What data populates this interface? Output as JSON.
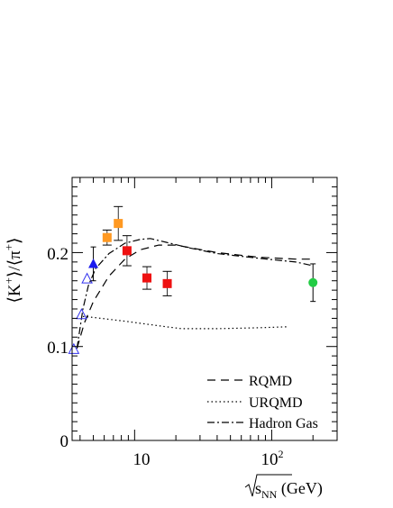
{
  "chart_data": {
    "type": "scatter",
    "title": "",
    "ylabel": "⟨K⁺⟩/⟨π⁺⟩",
    "xlabel": "√s_NN (GeV)",
    "x_scale": "log",
    "xlim": [
      3.5,
      300
    ],
    "ylim": [
      0,
      0.28
    ],
    "x_tick_labels": [
      "10",
      "10²"
    ],
    "y_tick_labels": [
      "0",
      "0.1",
      "0.2"
    ],
    "legend_position": "bottom-right",
    "legend": [
      {
        "label": "RQMD",
        "dash": "long-dash"
      },
      {
        "label": "URQMD",
        "dash": "dotted"
      },
      {
        "label": "Hadron Gas",
        "dash": "dash-dot"
      }
    ],
    "model_curves": [
      {
        "name": "RQMD",
        "style": "dashed",
        "points": [
          [
            3.8,
            0.098
          ],
          [
            4.3,
            0.125
          ],
          [
            5.0,
            0.148
          ],
          [
            6.5,
            0.175
          ],
          [
            8.5,
            0.193
          ],
          [
            11,
            0.203
          ],
          [
            15,
            0.208
          ],
          [
            20,
            0.208
          ],
          [
            40,
            0.2
          ],
          [
            80,
            0.195
          ],
          [
            150,
            0.193
          ],
          [
            200,
            0.193
          ]
        ]
      },
      {
        "name": "URQMD",
        "style": "dotted",
        "points": [
          [
            4.2,
            0.132
          ],
          [
            5.0,
            0.131
          ],
          [
            6.5,
            0.129
          ],
          [
            8.5,
            0.127
          ],
          [
            12,
            0.124
          ],
          [
            17,
            0.121
          ],
          [
            22,
            0.119
          ],
          [
            40,
            0.119
          ],
          [
            80,
            0.12
          ],
          [
            130,
            0.121
          ]
        ]
      },
      {
        "name": "Hadron Gas",
        "style": "dashdot",
        "points": [
          [
            3.8,
            0.098
          ],
          [
            4.2,
            0.14
          ],
          [
            4.6,
            0.165
          ],
          [
            5.2,
            0.183
          ],
          [
            6.5,
            0.199
          ],
          [
            8.5,
            0.21
          ],
          [
            11,
            0.214
          ],
          [
            13,
            0.215
          ],
          [
            17,
            0.211
          ],
          [
            25,
            0.205
          ],
          [
            40,
            0.199
          ],
          [
            80,
            0.194
          ],
          [
            150,
            0.19
          ],
          [
            200,
            0.186
          ]
        ]
      }
    ],
    "series": [
      {
        "marker": "triangle-open",
        "color": "#3333ee",
        "points": [
          {
            "x": 3.6,
            "y": 0.097
          },
          {
            "x": 4.1,
            "y": 0.134
          },
          {
            "x": 4.5,
            "y": 0.172
          }
        ]
      },
      {
        "marker": "triangle",
        "color": "#1a1aee",
        "points": [
          {
            "x": 5.0,
            "y": 0.188,
            "err": 0.018
          }
        ]
      },
      {
        "marker": "square",
        "color": "#ff9922",
        "points": [
          {
            "x": 6.3,
            "y": 0.216,
            "syst": 0.008
          },
          {
            "x": 7.6,
            "y": 0.231,
            "syst": 0.018
          }
        ]
      },
      {
        "marker": "square",
        "color": "#ee1111",
        "points": [
          {
            "x": 8.8,
            "y": 0.202,
            "syst": 0.016
          },
          {
            "x": 12.3,
            "y": 0.173,
            "syst": 0.012
          },
          {
            "x": 17.3,
            "y": 0.167,
            "syst": 0.013
          }
        ]
      },
      {
        "marker": "circle",
        "color": "#22cc44",
        "points": [
          {
            "x": 200,
            "y": 0.168,
            "err": 0.02
          }
        ]
      }
    ]
  }
}
